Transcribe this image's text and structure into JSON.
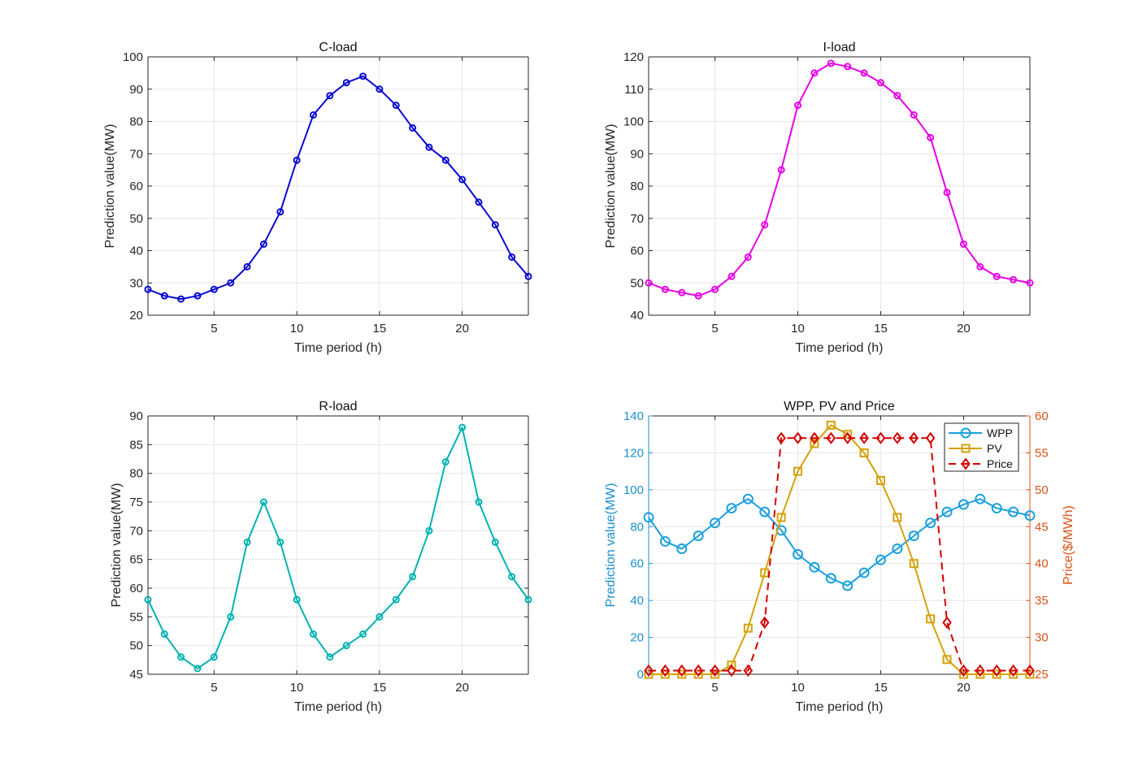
{
  "chart_data": [
    {
      "type": "line",
      "title": "C-load",
      "xlabel": "Time period (h)",
      "ylabel": "Prediction value(MW)",
      "xlim": [
        1,
        24
      ],
      "ylim": [
        20,
        100
      ],
      "xticks": [
        5,
        10,
        15,
        20
      ],
      "yticks": [
        20,
        30,
        40,
        50,
        60,
        70,
        80,
        90,
        100
      ],
      "grid": true,
      "x": [
        1,
        2,
        3,
        4,
        5,
        6,
        7,
        8,
        9,
        10,
        11,
        12,
        13,
        14,
        15,
        16,
        17,
        18,
        19,
        20,
        21,
        22,
        23,
        24
      ],
      "series": [
        {
          "name": "C-load",
          "color": "#0a0ad2",
          "marker": "circle",
          "dash": false,
          "values": [
            28,
            26,
            25,
            26,
            28,
            30,
            35,
            42,
            52,
            68,
            82,
            88,
            92,
            94,
            90,
            85,
            78,
            72,
            68,
            62,
            55,
            48,
            38,
            32
          ]
        }
      ]
    },
    {
      "type": "line",
      "title": "I-load",
      "xlabel": "Time period (h)",
      "ylabel": "Prediction value(MW)",
      "xlim": [
        1,
        24
      ],
      "ylim": [
        40,
        120
      ],
      "xticks": [
        5,
        10,
        15,
        20
      ],
      "yticks": [
        40,
        50,
        60,
        70,
        80,
        90,
        100,
        110,
        120
      ],
      "grid": true,
      "x": [
        1,
        2,
        3,
        4,
        5,
        6,
        7,
        8,
        9,
        10,
        11,
        12,
        13,
        14,
        15,
        16,
        17,
        18,
        19,
        20,
        21,
        22,
        23,
        24
      ],
      "series": [
        {
          "name": "I-load",
          "color": "#e600e6",
          "marker": "circle",
          "dash": false,
          "values": [
            50,
            48,
            47,
            46,
            48,
            52,
            58,
            68,
            85,
            105,
            115,
            118,
            117,
            115,
            112,
            108,
            102,
            95,
            78,
            62,
            55,
            52,
            51,
            50
          ]
        }
      ]
    },
    {
      "type": "line",
      "title": "R-load",
      "xlabel": "Time period (h)",
      "ylabel": "Prediction value(MW)",
      "xlim": [
        1,
        24
      ],
      "ylim": [
        45,
        90
      ],
      "xticks": [
        5,
        10,
        15,
        20
      ],
      "yticks": [
        45,
        50,
        55,
        60,
        65,
        70,
        75,
        80,
        85,
        90
      ],
      "grid": true,
      "x": [
        1,
        2,
        3,
        4,
        5,
        6,
        7,
        8,
        9,
        10,
        11,
        12,
        13,
        14,
        15,
        16,
        17,
        18,
        19,
        20,
        21,
        22,
        23,
        24
      ],
      "series": [
        {
          "name": "R-load",
          "color": "#00b2b2",
          "marker": "circle",
          "dash": false,
          "values": [
            58,
            52,
            48,
            46,
            48,
            55,
            68,
            75,
            68,
            58,
            52,
            48,
            50,
            52,
            55,
            58,
            62,
            70,
            82,
            88,
            75,
            68,
            62,
            58
          ]
        }
      ]
    },
    {
      "type": "line",
      "title": "WPP, PV and Price",
      "xlabel": "Time period (h)",
      "ylabel": "Prediction value(MW)",
      "ylabel_right": "Price($/MWh)",
      "xlim": [
        1,
        24
      ],
      "ylim": [
        0,
        140
      ],
      "ylim_right": [
        25,
        60
      ],
      "xticks": [
        5,
        10,
        15,
        20
      ],
      "yticks": [
        0,
        20,
        40,
        60,
        80,
        100,
        120,
        140
      ],
      "yticks_right": [
        25,
        30,
        35,
        40,
        45,
        50,
        55,
        60
      ],
      "left_axis_color": "#1a8fd0",
      "right_axis_color": "#d95319",
      "grid": true,
      "legend": "top-right",
      "x": [
        1,
        2,
        3,
        4,
        5,
        6,
        7,
        8,
        9,
        10,
        11,
        12,
        13,
        14,
        15,
        16,
        17,
        18,
        19,
        20,
        21,
        22,
        23,
        24
      ],
      "series": [
        {
          "name": "WPP",
          "color": "#1ba0dd",
          "marker": "circle-large",
          "dash": false,
          "axis": "left",
          "values": [
            85,
            72,
            68,
            75,
            82,
            90,
            95,
            88,
            78,
            65,
            58,
            52,
            48,
            55,
            62,
            68,
            75,
            82,
            88,
            92,
            95,
            90,
            88,
            86
          ]
        },
        {
          "name": "PV",
          "color": "#d4a20c",
          "marker": "square",
          "dash": false,
          "axis": "left",
          "values": [
            0,
            0,
            0,
            0,
            0,
            5,
            25,
            55,
            85,
            110,
            125,
            135,
            130,
            120,
            105,
            85,
            60,
            30,
            8,
            0,
            0,
            0,
            0,
            0
          ]
        },
        {
          "name": "Price",
          "color": "#d40000",
          "marker": "diamond",
          "dash": true,
          "axis": "right",
          "values": [
            25.5,
            25.5,
            25.5,
            25.5,
            25.5,
            25.5,
            25.5,
            32,
            57,
            57,
            57,
            57,
            57,
            57,
            57,
            57,
            57,
            57,
            32,
            25.5,
            25.5,
            25.5,
            25.5,
            25.5
          ]
        }
      ]
    }
  ]
}
